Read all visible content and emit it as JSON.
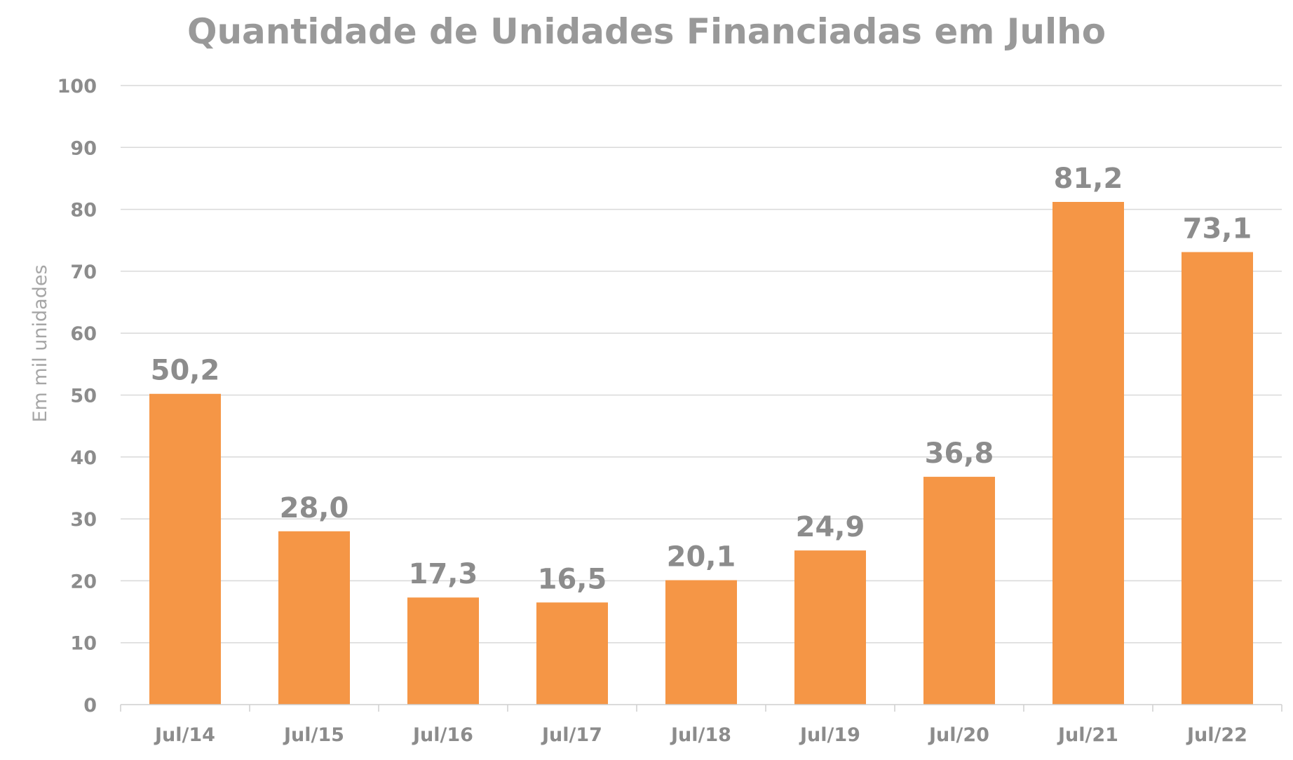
{
  "chart_data": {
    "type": "bar",
    "title": "Quantidade de Unidades Financiadas em Julho",
    "xlabel": "",
    "ylabel": "Em mil unidades",
    "categories": [
      "Jul/14",
      "Jul/15",
      "Jul/16",
      "Jul/17",
      "Jul/18",
      "Jul/19",
      "Jul/20",
      "Jul/21",
      "Jul/22"
    ],
    "values": [
      50.2,
      28.0,
      17.3,
      16.5,
      20.1,
      24.9,
      36.8,
      81.2,
      73.1
    ],
    "value_labels": [
      "50,2",
      "28,0",
      "17,3",
      "16,5",
      "20,1",
      "24,9",
      "36,8",
      "81,2",
      "73,1"
    ],
    "ylim": [
      0,
      100
    ],
    "yticks": [
      0,
      10,
      20,
      30,
      40,
      50,
      60,
      70,
      80,
      90,
      100
    ],
    "grid": true,
    "legend": "none",
    "bar_color": "#f59646"
  }
}
